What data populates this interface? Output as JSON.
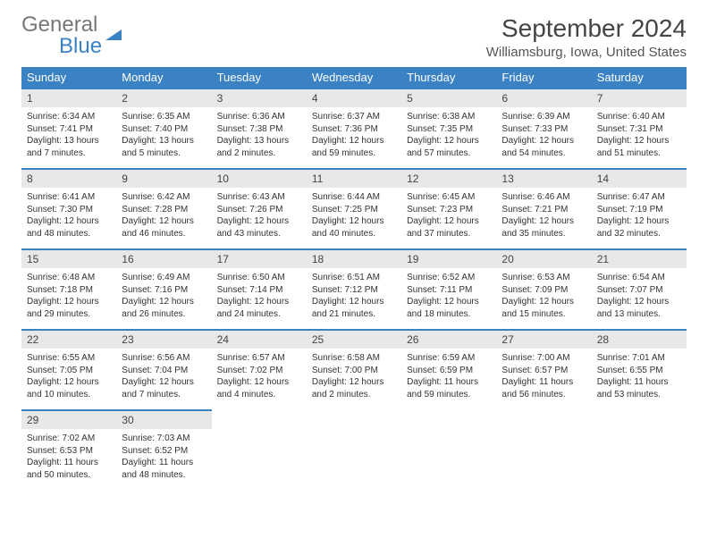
{
  "logo": {
    "part1": "General",
    "part2": "Blue"
  },
  "header": {
    "title": "September 2024",
    "subtitle": "Williamsburg, Iowa, United States"
  },
  "colors": {
    "headerBg": "#3b82c4",
    "numBg": "#e8e8e8",
    "border": "#3b82c4"
  },
  "dayNames": [
    "Sunday",
    "Monday",
    "Tuesday",
    "Wednesday",
    "Thursday",
    "Friday",
    "Saturday"
  ],
  "weeks": [
    {
      "nums": [
        "1",
        "2",
        "3",
        "4",
        "5",
        "6",
        "7"
      ],
      "cells": [
        {
          "sunrise": "6:34 AM",
          "sunset": "7:41 PM",
          "daylight": "13 hours and 7 minutes."
        },
        {
          "sunrise": "6:35 AM",
          "sunset": "7:40 PM",
          "daylight": "13 hours and 5 minutes."
        },
        {
          "sunrise": "6:36 AM",
          "sunset": "7:38 PM",
          "daylight": "13 hours and 2 minutes."
        },
        {
          "sunrise": "6:37 AM",
          "sunset": "7:36 PM",
          "daylight": "12 hours and 59 minutes."
        },
        {
          "sunrise": "6:38 AM",
          "sunset": "7:35 PM",
          "daylight": "12 hours and 57 minutes."
        },
        {
          "sunrise": "6:39 AM",
          "sunset": "7:33 PM",
          "daylight": "12 hours and 54 minutes."
        },
        {
          "sunrise": "6:40 AM",
          "sunset": "7:31 PM",
          "daylight": "12 hours and 51 minutes."
        }
      ]
    },
    {
      "nums": [
        "8",
        "9",
        "10",
        "11",
        "12",
        "13",
        "14"
      ],
      "cells": [
        {
          "sunrise": "6:41 AM",
          "sunset": "7:30 PM",
          "daylight": "12 hours and 48 minutes."
        },
        {
          "sunrise": "6:42 AM",
          "sunset": "7:28 PM",
          "daylight": "12 hours and 46 minutes."
        },
        {
          "sunrise": "6:43 AM",
          "sunset": "7:26 PM",
          "daylight": "12 hours and 43 minutes."
        },
        {
          "sunrise": "6:44 AM",
          "sunset": "7:25 PM",
          "daylight": "12 hours and 40 minutes."
        },
        {
          "sunrise": "6:45 AM",
          "sunset": "7:23 PM",
          "daylight": "12 hours and 37 minutes."
        },
        {
          "sunrise": "6:46 AM",
          "sunset": "7:21 PM",
          "daylight": "12 hours and 35 minutes."
        },
        {
          "sunrise": "6:47 AM",
          "sunset": "7:19 PM",
          "daylight": "12 hours and 32 minutes."
        }
      ]
    },
    {
      "nums": [
        "15",
        "16",
        "17",
        "18",
        "19",
        "20",
        "21"
      ],
      "cells": [
        {
          "sunrise": "6:48 AM",
          "sunset": "7:18 PM",
          "daylight": "12 hours and 29 minutes."
        },
        {
          "sunrise": "6:49 AM",
          "sunset": "7:16 PM",
          "daylight": "12 hours and 26 minutes."
        },
        {
          "sunrise": "6:50 AM",
          "sunset": "7:14 PM",
          "daylight": "12 hours and 24 minutes."
        },
        {
          "sunrise": "6:51 AM",
          "sunset": "7:12 PM",
          "daylight": "12 hours and 21 minutes."
        },
        {
          "sunrise": "6:52 AM",
          "sunset": "7:11 PM",
          "daylight": "12 hours and 18 minutes."
        },
        {
          "sunrise": "6:53 AM",
          "sunset": "7:09 PM",
          "daylight": "12 hours and 15 minutes."
        },
        {
          "sunrise": "6:54 AM",
          "sunset": "7:07 PM",
          "daylight": "12 hours and 13 minutes."
        }
      ]
    },
    {
      "nums": [
        "22",
        "23",
        "24",
        "25",
        "26",
        "27",
        "28"
      ],
      "cells": [
        {
          "sunrise": "6:55 AM",
          "sunset": "7:05 PM",
          "daylight": "12 hours and 10 minutes."
        },
        {
          "sunrise": "6:56 AM",
          "sunset": "7:04 PM",
          "daylight": "12 hours and 7 minutes."
        },
        {
          "sunrise": "6:57 AM",
          "sunset": "7:02 PM",
          "daylight": "12 hours and 4 minutes."
        },
        {
          "sunrise": "6:58 AM",
          "sunset": "7:00 PM",
          "daylight": "12 hours and 2 minutes."
        },
        {
          "sunrise": "6:59 AM",
          "sunset": "6:59 PM",
          "daylight": "11 hours and 59 minutes."
        },
        {
          "sunrise": "7:00 AM",
          "sunset": "6:57 PM",
          "daylight": "11 hours and 56 minutes."
        },
        {
          "sunrise": "7:01 AM",
          "sunset": "6:55 PM",
          "daylight": "11 hours and 53 minutes."
        }
      ]
    },
    {
      "nums": [
        "29",
        "30",
        "",
        "",
        "",
        "",
        ""
      ],
      "cells": [
        {
          "sunrise": "7:02 AM",
          "sunset": "6:53 PM",
          "daylight": "11 hours and 50 minutes."
        },
        {
          "sunrise": "7:03 AM",
          "sunset": "6:52 PM",
          "daylight": "11 hours and 48 minutes."
        },
        null,
        null,
        null,
        null,
        null
      ]
    }
  ]
}
